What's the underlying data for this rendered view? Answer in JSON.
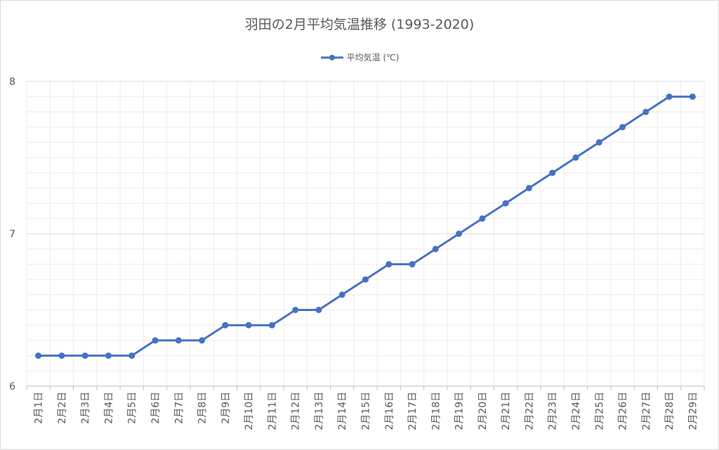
{
  "chart_data": {
    "type": "line",
    "title": "羽田の2月平均気温推移 (1993-2020)",
    "xlabel": "",
    "ylabel": "",
    "categories": [
      "2月1日",
      "2月2日",
      "2月3日",
      "2月4日",
      "2月5日",
      "2月6日",
      "2月7日",
      "2月8日",
      "2月9日",
      "2月10日",
      "2月11日",
      "2月12日",
      "2月13日",
      "2月14日",
      "2月15日",
      "2月16日",
      "2月17日",
      "2月18日",
      "2月19日",
      "2月20日",
      "2月21日",
      "2月22日",
      "2月23日",
      "2月24日",
      "2月25日",
      "2月26日",
      "2月27日",
      "2月28日",
      "2月29日"
    ],
    "series": [
      {
        "name": "平均気温 (℃)",
        "values": [
          6.2,
          6.2,
          6.2,
          6.2,
          6.2,
          6.3,
          6.3,
          6.3,
          6.4,
          6.4,
          6.4,
          6.5,
          6.5,
          6.6,
          6.7,
          6.8,
          6.8,
          6.9,
          7.0,
          7.1,
          7.2,
          7.3,
          7.4,
          7.5,
          7.6,
          7.7,
          7.8,
          7.9,
          7.9
        ]
      }
    ],
    "ylim": [
      6,
      8
    ],
    "yticks": [
      "6",
      "7",
      "8"
    ],
    "grid": true,
    "legend_position": "top",
    "colors": {
      "series": "#4472c4",
      "grid_major": "#d9d9d9",
      "grid_minor": "#ececec",
      "text": "#595959"
    }
  }
}
